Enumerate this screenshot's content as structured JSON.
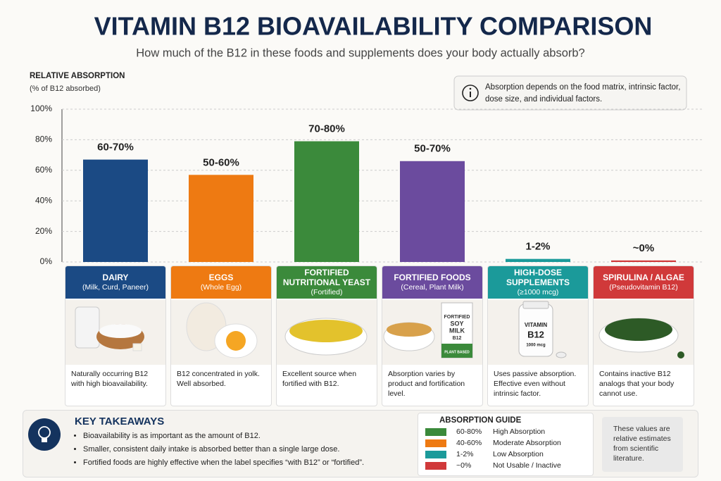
{
  "chart_data": {
    "type": "bar",
    "title": "VITAMIN B12 BIOAVAILABILITY COMPARISON",
    "subtitle": "How much of the B12 in these foods and supplements does your body actually absorb?",
    "y_label": "RELATIVE ABSORPTION",
    "y_sublabel": "(% of B12 absorbed)",
    "categories": [
      "DAIRY",
      "EGGS",
      "FORTIFIED NUTRITIONAL YEAST",
      "FORTIFIED FOODS",
      "HIGH-DOSE SUPPLEMENTS",
      "SPIRULINA / ALGAE"
    ],
    "values": [
      67,
      57,
      79,
      66,
      2,
      1
    ],
    "value_labels": [
      "60-70%",
      "50-60%",
      "70-80%",
      "50-70%",
      "1-2%",
      "~0%"
    ],
    "colors": [
      "#1b4a84",
      "#ee7a12",
      "#3b8a3b",
      "#6b4b9e",
      "#1b9a9a",
      "#d0393a"
    ],
    "ylim": [
      0,
      100
    ],
    "yticks": [
      {
        "value": 0,
        "label": "0%"
      },
      {
        "value": 20,
        "label": "20%"
      },
      {
        "value": 40,
        "label": "40%"
      },
      {
        "value": 60,
        "label": "60%"
      },
      {
        "value": 80,
        "label": "80%"
      },
      {
        "value": 100,
        "label": "100%"
      }
    ],
    "grid": true
  },
  "info_note": "Absorption depends on the food matrix, intrinsic factor, dose size, and individual factors.",
  "cards": [
    {
      "subtitle": "(Milk, Curd, Paneer)",
      "description": "Naturally occurring B12 with high bioavailability."
    },
    {
      "subtitle": "(Whole Egg)",
      "description": "B12 concentrated in yolk. Well absorbed."
    },
    {
      "subtitle": "(Fortified)",
      "description": "Excellent source when fortified with B12."
    },
    {
      "subtitle": "(Cereal, Plant Milk)",
      "description": "Absorption varies by product and fortification level.",
      "image_text": [
        "FORTIFIED",
        "SOY",
        "MILK",
        "B12",
        "PLANT BASED"
      ]
    },
    {
      "subtitle": "(≥1000 mcg)",
      "description": "Uses passive absorption. Effective even without intrinsic factor.",
      "image_text": [
        "VITAMIN",
        "B12",
        "1000 mcg"
      ]
    },
    {
      "subtitle": "(Pseudovitamin B12)",
      "description": "Contains inactive B12 analogs that your body cannot use."
    }
  ],
  "takeaways": {
    "title": "KEY TAKEAWAYS",
    "items": [
      "Bioavailability is as important as the amount of B12.",
      "Smaller, consistent daily intake is absorbed better than a single large dose.",
      "Fortified foods are highly effective when the label specifies “with B12” or “fortified”."
    ]
  },
  "guide": {
    "title": "ABSORPTION GUIDE",
    "rows": [
      {
        "range": "60-80%",
        "label": "High Absorption",
        "color": "#3b8a3b"
      },
      {
        "range": "40-60%",
        "label": "Moderate Absorption",
        "color": "#ee7a12"
      },
      {
        "range": "1-2%",
        "label": "Low Absorption",
        "color": "#1b9a9a"
      },
      {
        "range": "~0%",
        "label": "Not Usable / Inactive",
        "color": "#d0393a"
      }
    ]
  },
  "footnote": "These values are relative estimates from scientific literature."
}
